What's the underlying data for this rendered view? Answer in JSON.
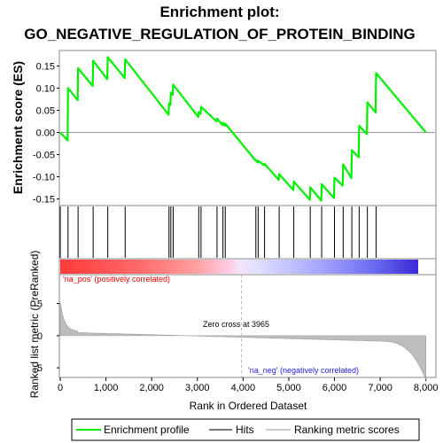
{
  "chart_data": {
    "type": "line",
    "title_line1": "Enrichment plot:",
    "title_line2": "GO_NEGATIVE_REGULATION_OF_PROTEIN_BINDING",
    "ylabel_es": "Enrichment score (ES)",
    "ylabel_metric": "Ranked list metric (PreRanked)",
    "xlabel": "Rank in Ordered Dataset",
    "xlim": [
      0,
      8200
    ],
    "x_ticks": [
      0,
      1000,
      2000,
      3000,
      4000,
      5000,
      6000,
      7000,
      8000
    ],
    "x_tick_labels": [
      "0",
      "1,000",
      "2,000",
      "3,000",
      "4,000",
      "5,000",
      "6,000",
      "7,000",
      "8,000"
    ],
    "es_ylim": [
      -0.165,
      0.185
    ],
    "es_ticks": [
      0.15,
      0.1,
      0.05,
      0.0,
      -0.05,
      -0.1,
      -0.15
    ],
    "es_tick_labels": [
      "0.15",
      "0.10",
      "0.05",
      "0.00",
      "-0.05",
      "-0.10",
      "-0.15"
    ],
    "metric_ylim": [
      -6.5,
      9.5
    ],
    "metric_ticks": [
      5,
      0,
      -5
    ],
    "metric_tick_labels": [
      "5",
      "0",
      "-5"
    ],
    "hits": [
      0,
      170,
      390,
      720,
      1040,
      1420,
      2380,
      2420,
      2470,
      3030,
      3080,
      3430,
      3560,
      3610,
      4280,
      4330,
      4470,
      4790,
      5110,
      5470,
      5720,
      6000,
      6190,
      6380,
      6540,
      6720,
      6910
    ],
    "es_points": [
      [
        0,
        0.0
      ],
      [
        160,
        -0.018
      ],
      [
        170,
        0.1
      ],
      [
        380,
        0.073
      ],
      [
        390,
        0.145
      ],
      [
        710,
        0.105
      ],
      [
        720,
        0.162
      ],
      [
        1030,
        0.12
      ],
      [
        1040,
        0.17
      ],
      [
        1410,
        0.123
      ],
      [
        1420,
        0.165
      ],
      [
        2370,
        0.04
      ],
      [
        2380,
        0.066
      ],
      [
        2410,
        0.062
      ],
      [
        2420,
        0.09
      ],
      [
        2460,
        0.085
      ],
      [
        2470,
        0.108
      ],
      [
        3020,
        0.035
      ],
      [
        3030,
        0.046
      ],
      [
        3070,
        0.042
      ],
      [
        3080,
        0.058
      ],
      [
        3420,
        0.025
      ],
      [
        3430,
        0.031
      ],
      [
        3550,
        0.017
      ],
      [
        3560,
        0.022
      ],
      [
        3600,
        0.015
      ],
      [
        3610,
        0.02
      ],
      [
        4270,
        -0.063
      ],
      [
        4280,
        -0.062
      ],
      [
        4320,
        -0.068
      ],
      [
        4330,
        -0.064
      ],
      [
        4460,
        -0.074
      ],
      [
        4470,
        -0.071
      ],
      [
        4780,
        -0.107
      ],
      [
        4790,
        -0.094
      ],
      [
        5100,
        -0.13
      ],
      [
        5110,
        -0.111
      ],
      [
        5460,
        -0.152
      ],
      [
        5470,
        -0.124
      ],
      [
        5710,
        -0.154
      ],
      [
        5720,
        -0.117
      ],
      [
        5990,
        -0.148
      ],
      [
        6000,
        -0.102
      ],
      [
        6180,
        -0.12
      ],
      [
        6190,
        -0.072
      ],
      [
        6370,
        -0.103
      ],
      [
        6380,
        -0.04
      ],
      [
        6530,
        -0.056
      ],
      [
        6540,
        0.015
      ],
      [
        6710,
        -0.004
      ],
      [
        6720,
        0.068
      ],
      [
        6900,
        0.045
      ],
      [
        6910,
        0.134
      ],
      [
        8000,
        0.0
      ]
    ],
    "zero_cross_label": "Zero cross at 3965",
    "zero_cross_rank": 3965,
    "pos_label": "'na_pos' (positively correlated)",
    "neg_label": "'na_neg' (negatively correlated)",
    "legend": [
      "Enrichment profile",
      "Hits",
      "Ranking metric scores"
    ],
    "colors": {
      "profile": "#00ee00",
      "hits": "#000000",
      "metric_fill": "#bdbdbd",
      "pos_text": "#ee0000",
      "neg_text": "#2222dd"
    }
  }
}
